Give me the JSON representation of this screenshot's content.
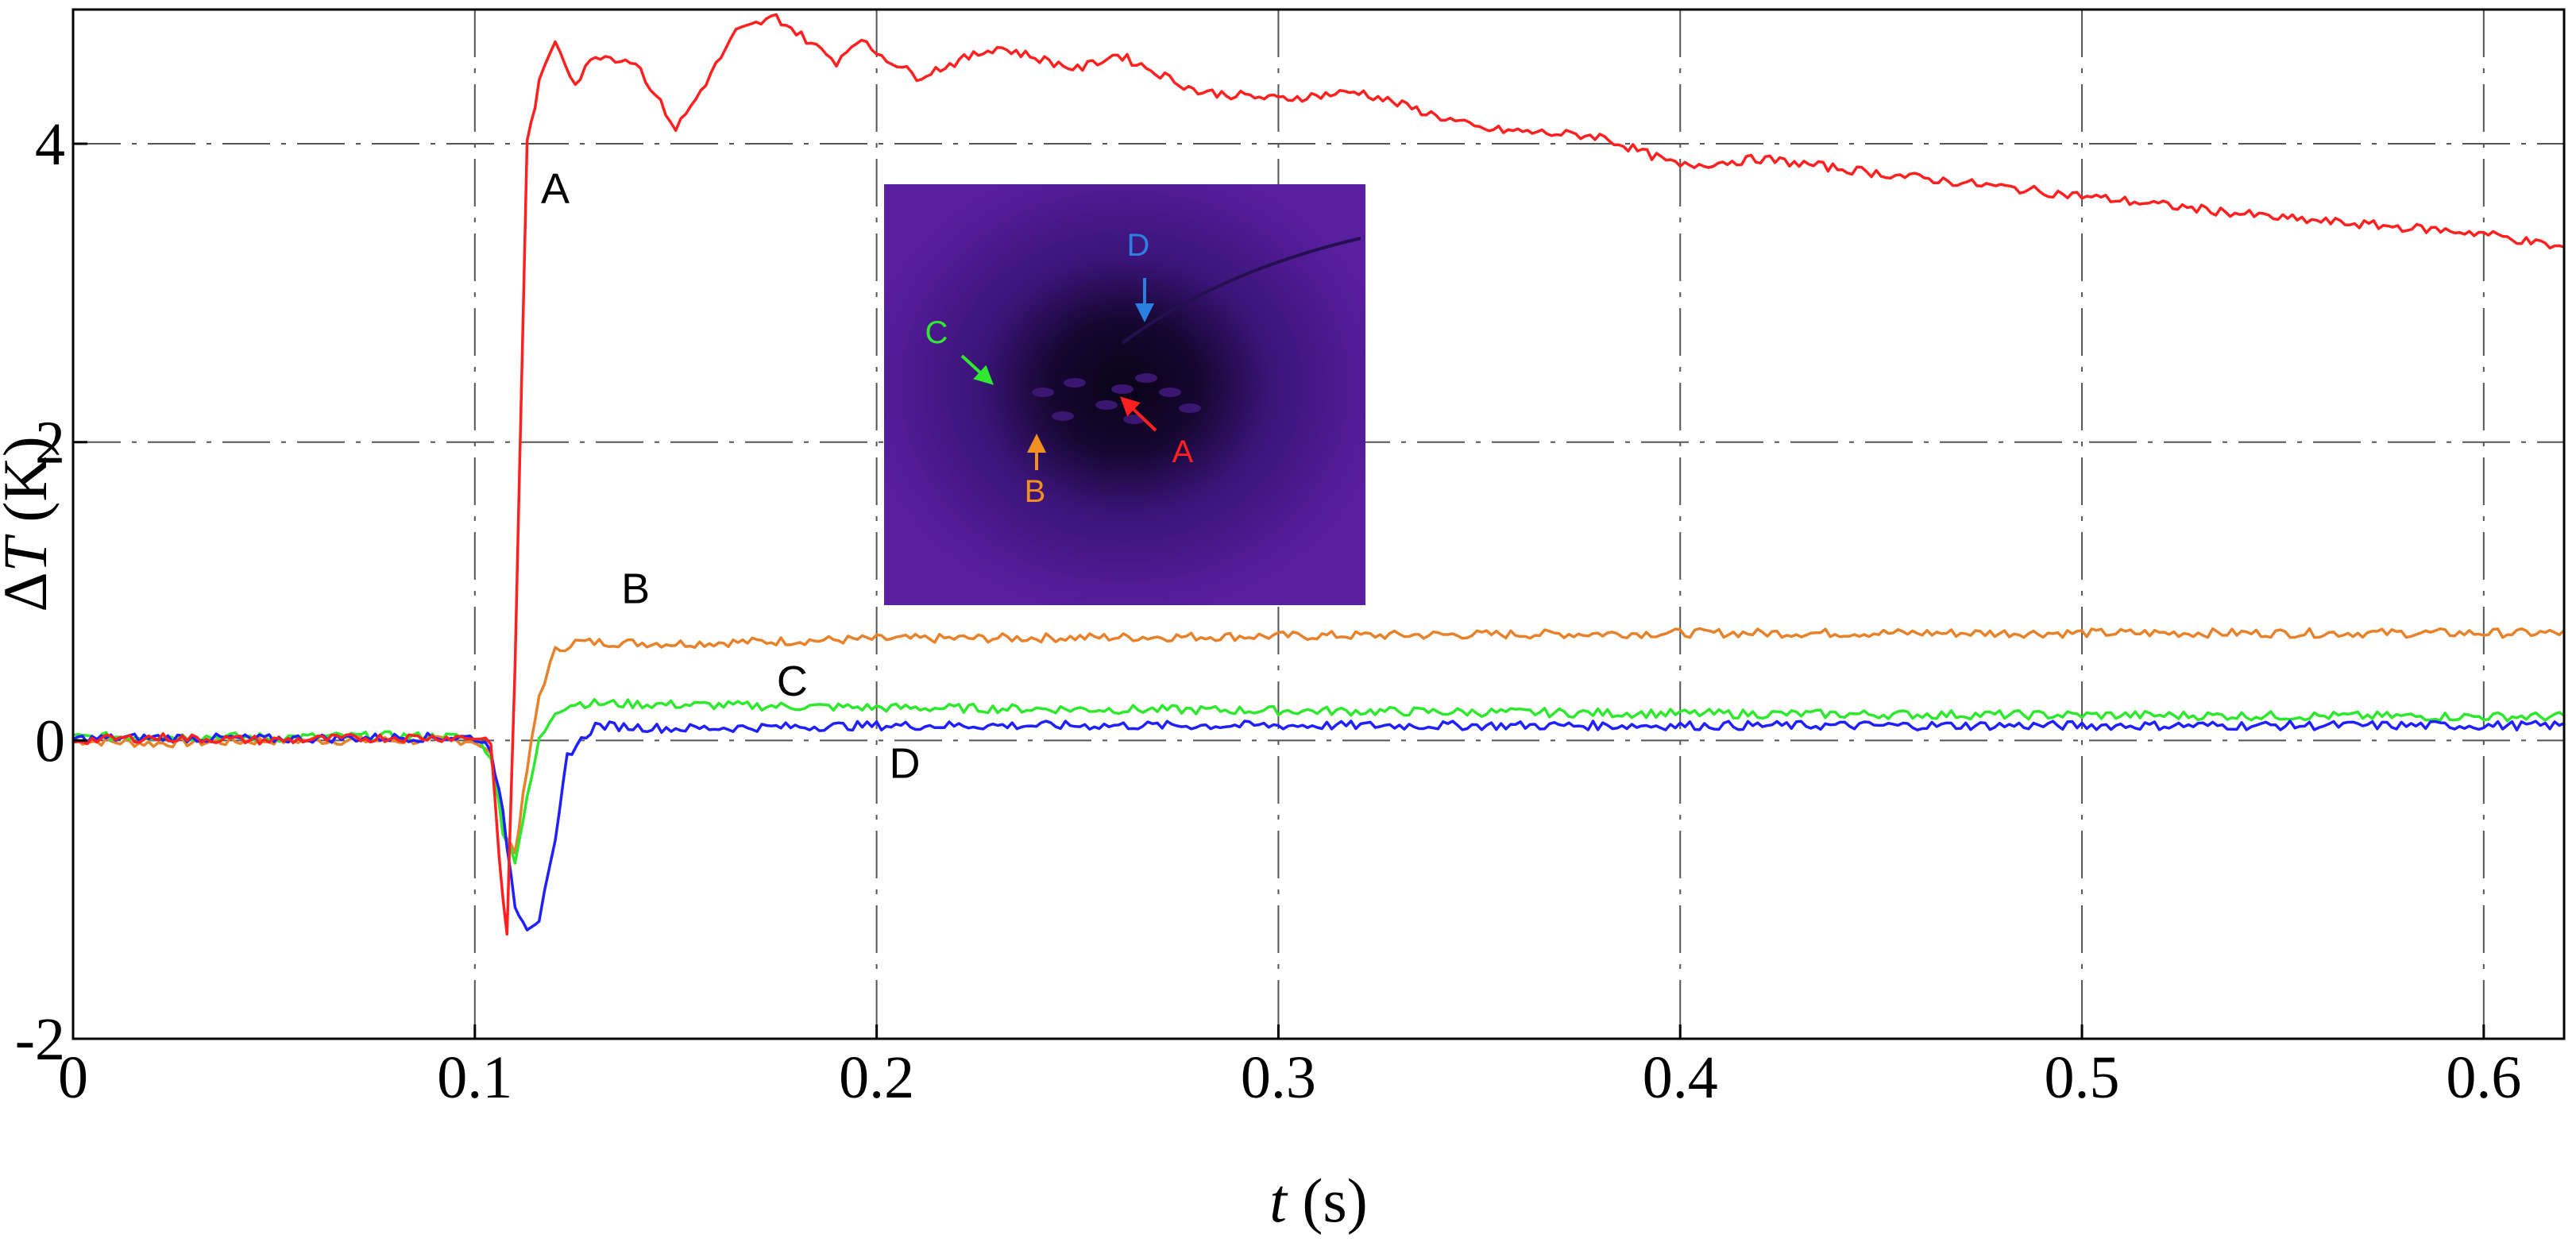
{
  "chart_data": {
    "type": "line",
    "title": "",
    "xlabel": "t (s)",
    "xlabel_var": "t",
    "xlabel_unit": " (s)",
    "ylabel": "ΔT (K)",
    "ylabel_delta": "Δ",
    "ylabel_var": "T",
    "ylabel_unit": " (K)",
    "xlim": [
      0,
      0.62
    ],
    "ylim": [
      -2,
      4.9
    ],
    "xticks": [
      0,
      0.1,
      0.2,
      0.3,
      0.4,
      0.5,
      0.6
    ],
    "xtick_labels": [
      "0",
      "0.1",
      "0.2",
      "0.3",
      "0.4",
      "0.5",
      "0.6"
    ],
    "yticks": [
      -2,
      0,
      2,
      4
    ],
    "ytick_labels": [
      "-2",
      "0",
      "2",
      "4"
    ],
    "grid": true,
    "grid_style": "dash-dot",
    "legend": "none (series labelled inline)",
    "series": [
      {
        "name": "A",
        "color": "#ff2020",
        "x": [
          0,
          0.02,
          0.05,
          0.08,
          0.1,
          0.104,
          0.106,
          0.108,
          0.11,
          0.113,
          0.116,
          0.12,
          0.125,
          0.13,
          0.14,
          0.15,
          0.155,
          0.165,
          0.175,
          0.18,
          0.19,
          0.195,
          0.21,
          0.23,
          0.25,
          0.26,
          0.28,
          0.3,
          0.32,
          0.35,
          0.38,
          0.4,
          0.42,
          0.45,
          0.5,
          0.55,
          0.6,
          0.62
        ],
        "values": [
          0.0,
          0.02,
          0.0,
          0.02,
          0.02,
          0.0,
          -0.8,
          -1.3,
          0.5,
          4.0,
          4.4,
          4.7,
          4.4,
          4.6,
          4.55,
          4.1,
          4.3,
          4.75,
          4.85,
          4.75,
          4.55,
          4.7,
          4.45,
          4.65,
          4.5,
          4.6,
          4.35,
          4.3,
          4.35,
          4.1,
          4.05,
          3.85,
          3.9,
          3.8,
          3.65,
          3.5,
          3.4,
          3.3
        ]
      },
      {
        "name": "B",
        "color": "#e8822a",
        "x": [
          0,
          0.02,
          0.05,
          0.08,
          0.1,
          0.104,
          0.107,
          0.11,
          0.113,
          0.116,
          0.12,
          0.125,
          0.15,
          0.2,
          0.3,
          0.4,
          0.5,
          0.6,
          0.62
        ],
        "values": [
          0.0,
          -0.02,
          0.0,
          0.0,
          0.0,
          -0.1,
          -0.6,
          -0.75,
          -0.2,
          0.3,
          0.6,
          0.66,
          0.65,
          0.68,
          0.7,
          0.72,
          0.72,
          0.72,
          0.72
        ]
      },
      {
        "name": "C",
        "color": "#2ee82e",
        "x": [
          0,
          0.02,
          0.05,
          0.08,
          0.1,
          0.104,
          0.107,
          0.11,
          0.113,
          0.116,
          0.12,
          0.125,
          0.15,
          0.2,
          0.3,
          0.4,
          0.5,
          0.6,
          0.62
        ],
        "values": [
          0.02,
          0.03,
          0.02,
          0.03,
          0.02,
          -0.1,
          -0.6,
          -0.8,
          -0.4,
          0.0,
          0.2,
          0.25,
          0.24,
          0.22,
          0.2,
          0.18,
          0.17,
          0.16,
          0.16
        ]
      },
      {
        "name": "D",
        "color": "#2020ff",
        "x": [
          0,
          0.02,
          0.05,
          0.08,
          0.1,
          0.104,
          0.107,
          0.11,
          0.113,
          0.116,
          0.12,
          0.123,
          0.13,
          0.15,
          0.2,
          0.3,
          0.4,
          0.5,
          0.6,
          0.62
        ],
        "values": [
          0.01,
          0.02,
          0.01,
          0.02,
          0.02,
          -0.05,
          -0.5,
          -1.1,
          -1.25,
          -1.2,
          -0.7,
          -0.1,
          0.1,
          0.08,
          0.1,
          0.1,
          0.1,
          0.1,
          0.1,
          0.1
        ]
      }
    ],
    "annotations": [
      {
        "text": "A",
        "x": 0.12,
        "y": 3.6
      },
      {
        "text": "B",
        "x": 0.14,
        "y": 0.92
      },
      {
        "text": "C",
        "x": 0.179,
        "y": 0.3
      },
      {
        "text": "D",
        "x": 0.207,
        "y": -0.25
      }
    ],
    "inset": {
      "type": "thermal image",
      "background_color": "#5a1ea0",
      "markers": [
        {
          "text": "A",
          "color": "#ff2020"
        },
        {
          "text": "B",
          "color": "#f09020"
        },
        {
          "text": "C",
          "color": "#30e830"
        },
        {
          "text": "D",
          "color": "#2a7fe0"
        }
      ]
    }
  }
}
